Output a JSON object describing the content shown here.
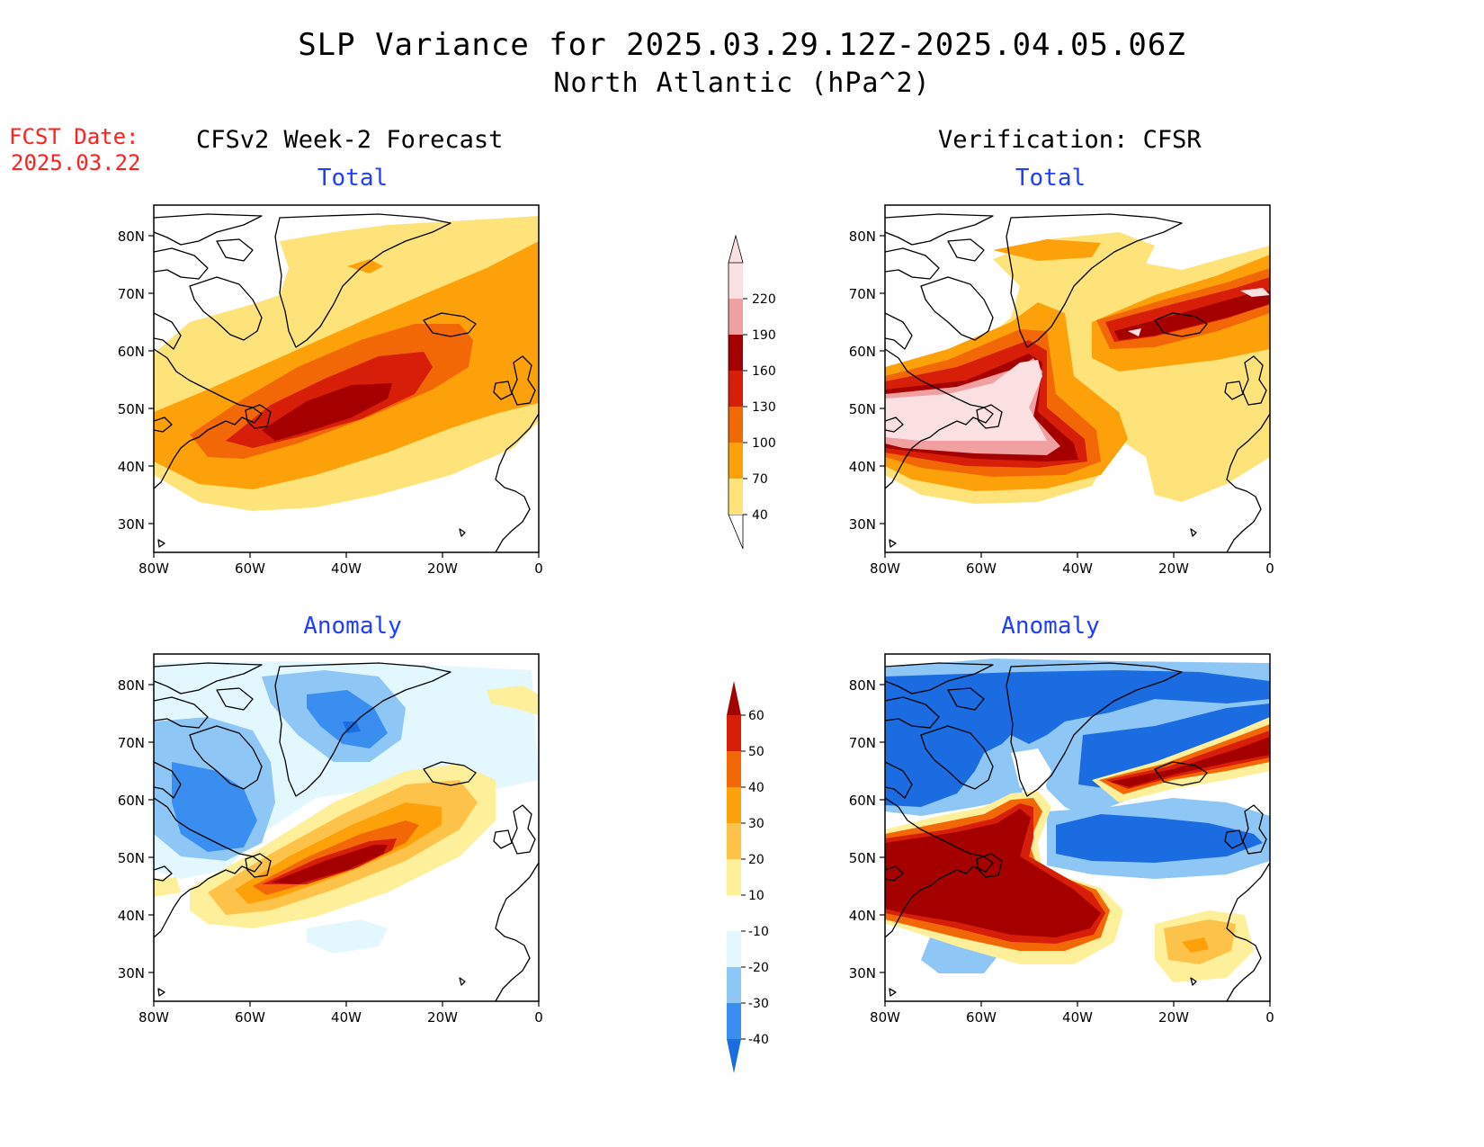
{
  "title": "SLP Variance for 2025.03.29.12Z-2025.04.05.06Z",
  "subtitle": "North Atlantic (hPa^2)",
  "fcst_date_label": "FCST Date:",
  "fcst_date_value": "2025.03.22",
  "left_column_title": "CFSv2 Week-2 Forecast",
  "right_column_title": "Verification: CFSR",
  "panels": [
    {
      "id": "forecast-total",
      "label": "Total"
    },
    {
      "id": "verification-total",
      "label": "Total"
    },
    {
      "id": "forecast-anomaly",
      "label": "Anomaly"
    },
    {
      "id": "verification-anomaly",
      "label": "Anomaly"
    }
  ],
  "lat_ticks": [
    "80N",
    "70N",
    "60N",
    "50N",
    "40N",
    "30N"
  ],
  "lon_ticks": [
    "80W",
    "60W",
    "40W",
    "20W",
    "0"
  ],
  "total_colorbar": {
    "levels": [
      "40",
      "70",
      "100",
      "130",
      "160",
      "190",
      "220"
    ],
    "colors": [
      "#fde37a",
      "#fda10a",
      "#f26806",
      "#d61e08",
      "#a50000",
      "#f0a0a0",
      "#fbe0e2"
    ]
  },
  "anomaly_colorbar": {
    "levels": [
      "-40",
      "-30",
      "-20",
      "-10",
      "10",
      "20",
      "30",
      "40",
      "50",
      "60"
    ],
    "colors": [
      "#1a6ce0",
      "#3a8ef0",
      "#8ec6f6",
      "#e2f7fe",
      "#ffffff",
      "#fef09a",
      "#fcc24a",
      "#fca10a",
      "#f26806",
      "#d61e08",
      "#a50000"
    ]
  }
}
